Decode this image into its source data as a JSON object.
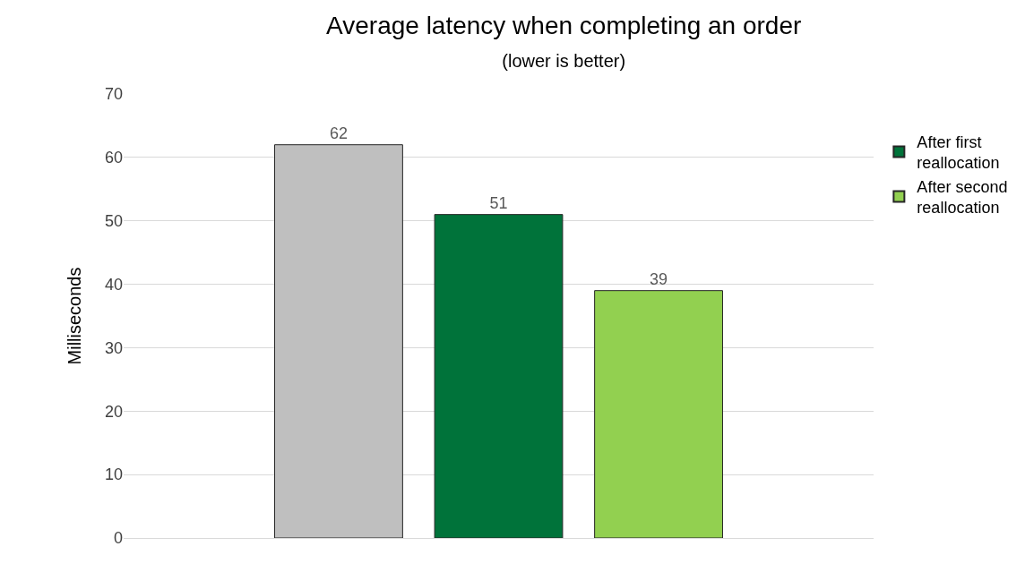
{
  "chart_data": {
    "type": "bar",
    "title": "Average latency when completing an order",
    "subtitle": "(lower is better)",
    "ylabel": "Milliseconds",
    "categories": [
      null
    ],
    "series": [
      {
        "color": "#bfbfbf",
        "values": [
          62
        ]
      },
      {
        "name": "After first reallocation",
        "color": "#00733a",
        "values": [
          51
        ]
      },
      {
        "name": "After second reallocation",
        "color": "#92d050",
        "values": [
          39
        ]
      }
    ],
    "ylim": [
      0,
      70
    ],
    "yticks": [
      0,
      10,
      20,
      30,
      40,
      50,
      60,
      70
    ],
    "grid": "y",
    "legend": "right",
    "data_labels": true,
    "tick_labels": "y"
  }
}
